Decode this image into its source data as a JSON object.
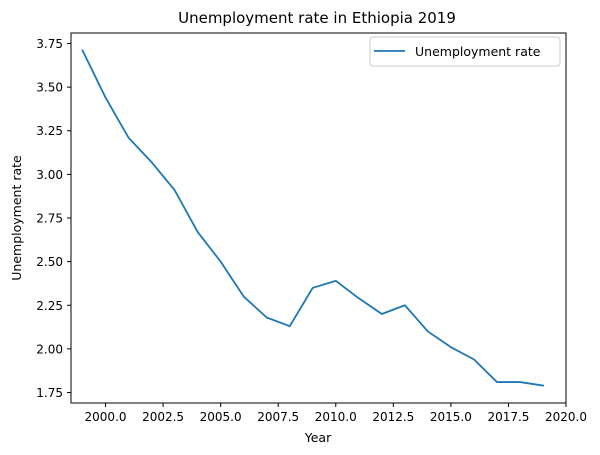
{
  "chart_data": {
    "type": "line",
    "title": "Unemployment rate in Ethiopia 2019",
    "xlabel": "Year",
    "ylabel": "Unemployment rate",
    "xlim": [
      1998.5,
      2020
    ],
    "ylim": [
      1.69,
      3.81
    ],
    "x_ticks": [
      2000,
      2002.5,
      2005,
      2007.5,
      2010,
      2012.5,
      2015,
      2017.5,
      2020
    ],
    "x_tick_labels": [
      "2000.0",
      "2002.5",
      "2005.0",
      "2007.5",
      "2010.0",
      "2012.5",
      "2015.0",
      "2017.5",
      "2020.0"
    ],
    "y_ticks": [
      1.75,
      2.0,
      2.25,
      2.5,
      2.75,
      3.0,
      3.25,
      3.5,
      3.75
    ],
    "y_tick_labels": [
      "1.75",
      "2.00",
      "2.25",
      "2.50",
      "2.75",
      "3.00",
      "3.25",
      "3.50",
      "3.75"
    ],
    "grid": false,
    "legend_position": "upper right",
    "series": [
      {
        "name": "Unemployment rate",
        "color": "#1f77b4",
        "x": [
          1999,
          2000,
          2001,
          2002,
          2003,
          2004,
          2005,
          2006,
          2007,
          2008,
          2009,
          2010,
          2011,
          2012,
          2013,
          2014,
          2015,
          2016,
          2017,
          2018,
          2019
        ],
        "y": [
          3.71,
          3.44,
          3.21,
          3.07,
          2.91,
          2.67,
          2.5,
          2.3,
          2.18,
          2.13,
          2.35,
          2.39,
          2.29,
          2.2,
          2.25,
          2.1,
          2.01,
          1.94,
          1.81,
          1.81,
          1.79
        ]
      }
    ]
  }
}
